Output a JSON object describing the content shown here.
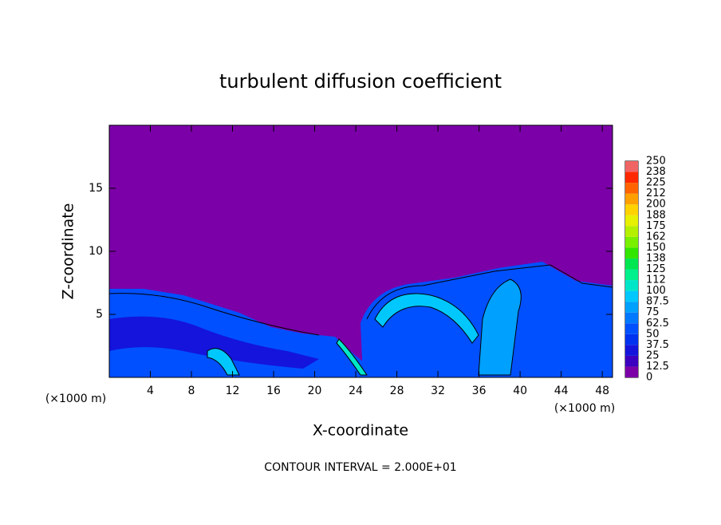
{
  "chart_data": {
    "type": "contour",
    "title": "turbulent diffusion coefficient",
    "x_label": "X-coordinate",
    "y_label": "Z-coordinate",
    "x_unit": "(×1000 m)",
    "x_unit_right": "(×1000 m)",
    "footer": "CONTOUR INTERVAL = 2.000E+01",
    "xlim": [
      0,
      49
    ],
    "xticks": [
      4,
      8,
      12,
      16,
      20,
      24,
      28,
      32,
      36,
      40,
      44,
      48
    ],
    "ylim": [
      0,
      20
    ],
    "yticks": [
      5,
      10,
      15
    ],
    "background_color": "#7b00a8",
    "colorbar": {
      "ticks": [
        0,
        12.5,
        25,
        37.5,
        50,
        62.5,
        75,
        87.5,
        100,
        112,
        125,
        138,
        150,
        162,
        175,
        188,
        200,
        212,
        225,
        238,
        250
      ],
      "colors": [
        "#7b00a8",
        "#3c00c0",
        "#1414dc",
        "#0032f0",
        "#0050ff",
        "#0078ff",
        "#00a0ff",
        "#00c8ff",
        "#00e6c8",
        "#00f08c",
        "#00e650",
        "#32e600",
        "#78f000",
        "#b4f000",
        "#e6f000",
        "#ffd200",
        "#ffa000",
        "#ff6400",
        "#ff2800",
        "#f06464"
      ]
    }
  }
}
